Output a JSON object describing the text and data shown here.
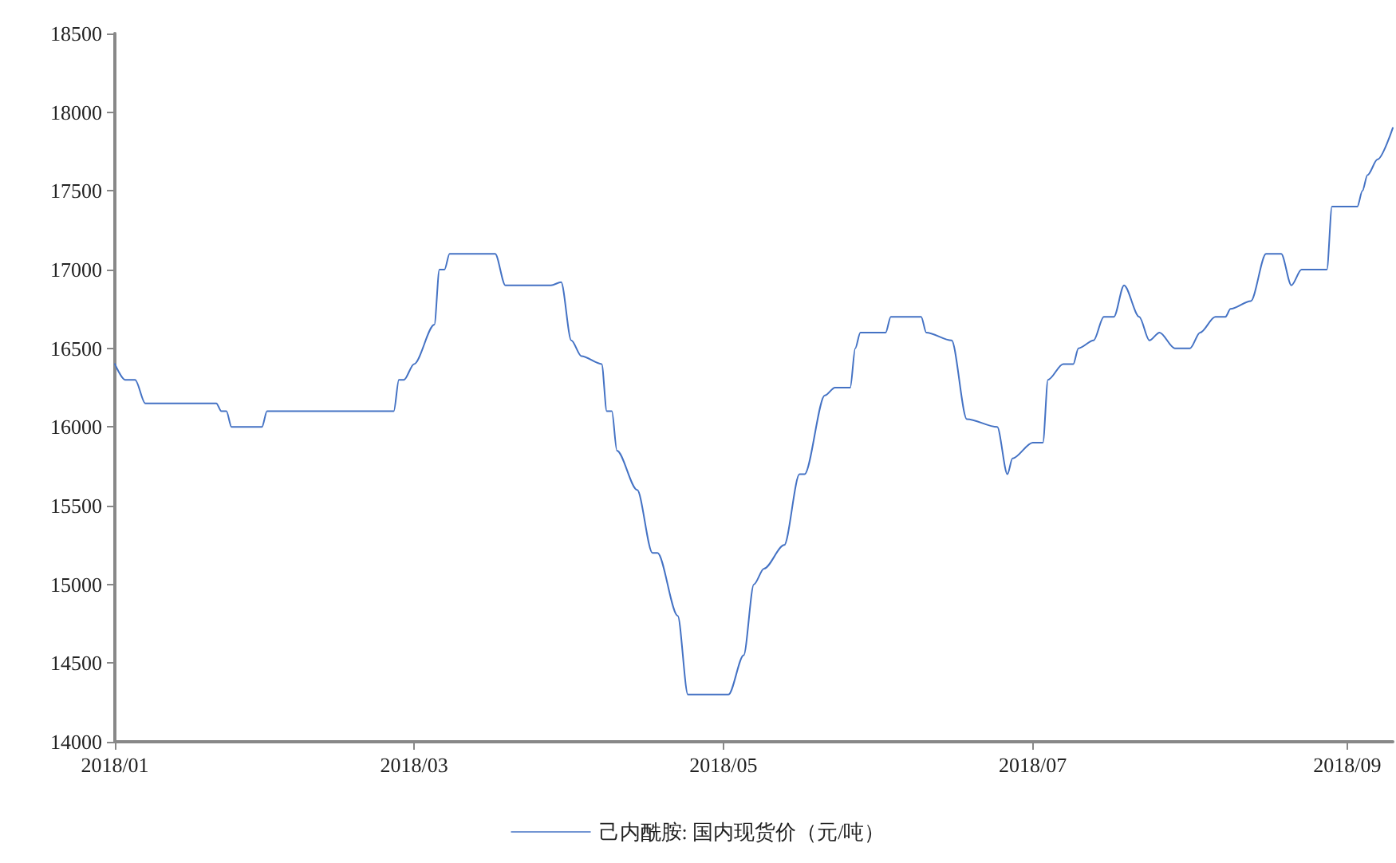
{
  "chart_data": {
    "type": "line",
    "xlim": [
      "2018-01-01",
      "2018-09-10"
    ],
    "ylim": [
      14000,
      18500
    ],
    "xticks": [
      {
        "value": "2018-01-01",
        "label": "2018/01"
      },
      {
        "value": "2018-03-01",
        "label": "2018/03"
      },
      {
        "value": "2018-05-01",
        "label": "2018/05"
      },
      {
        "value": "2018-07-01",
        "label": "2018/07"
      },
      {
        "value": "2018-09-01",
        "label": "2018/09"
      }
    ],
    "yticks": [
      14000,
      14500,
      15000,
      15500,
      16000,
      16500,
      17000,
      17500,
      18000,
      18500
    ],
    "grid": false,
    "legend": "bottom",
    "marker": "none",
    "line_style": "solid",
    "x": [
      "2018-01-01",
      "2018-01-03",
      "2018-01-05",
      "2018-01-07",
      "2018-01-21",
      "2018-01-22",
      "2018-01-23",
      "2018-01-24",
      "2018-01-30",
      "2018-01-31",
      "2018-02-25",
      "2018-02-26",
      "2018-02-27",
      "2018-03-01",
      "2018-03-05",
      "2018-03-06",
      "2018-03-07",
      "2018-03-08",
      "2018-03-17",
      "2018-03-19",
      "2018-03-28",
      "2018-03-30",
      "2018-04-01",
      "2018-04-03",
      "2018-04-07",
      "2018-04-08",
      "2018-04-09",
      "2018-04-10",
      "2018-04-14",
      "2018-04-17",
      "2018-04-18",
      "2018-04-22",
      "2018-04-24",
      "2018-05-02",
      "2018-05-05",
      "2018-05-07",
      "2018-05-09",
      "2018-05-13",
      "2018-05-16",
      "2018-05-17",
      "2018-05-21",
      "2018-05-23",
      "2018-05-26",
      "2018-05-27",
      "2018-05-28",
      "2018-06-02",
      "2018-06-03",
      "2018-06-09",
      "2018-06-10",
      "2018-06-15",
      "2018-06-18",
      "2018-06-24",
      "2018-06-26",
      "2018-06-27",
      "2018-07-01",
      "2018-07-03",
      "2018-07-04",
      "2018-07-07",
      "2018-07-09",
      "2018-07-10",
      "2018-07-13",
      "2018-07-15",
      "2018-07-17",
      "2018-07-19",
      "2018-07-22",
      "2018-07-24",
      "2018-07-26",
      "2018-07-29",
      "2018-08-01",
      "2018-08-03",
      "2018-08-06",
      "2018-08-08",
      "2018-08-09",
      "2018-08-13",
      "2018-08-16",
      "2018-08-19",
      "2018-08-21",
      "2018-08-23",
      "2018-08-28",
      "2018-08-29",
      "2018-09-03",
      "2018-09-04",
      "2018-09-05",
      "2018-09-07",
      "2018-09-10"
    ],
    "series": [
      {
        "name": "己内酰胺: 国内现货价（元/吨）",
        "color": "#4472c4",
        "values": [
          16400,
          16300,
          16300,
          16150,
          16150,
          16100,
          16100,
          16000,
          16000,
          16100,
          16100,
          16300,
          16300,
          16400,
          16650,
          17000,
          17000,
          17100,
          17100,
          16900,
          16900,
          16920,
          16550,
          16450,
          16400,
          16100,
          16100,
          15850,
          15600,
          15200,
          15200,
          14800,
          14300,
          14300,
          14550,
          15000,
          15100,
          15250,
          15700,
          15700,
          16200,
          16250,
          16250,
          16500,
          16600,
          16600,
          16700,
          16700,
          16600,
          16550,
          16050,
          16000,
          15700,
          15800,
          15900,
          15900,
          16300,
          16400,
          16400,
          16500,
          16550,
          16700,
          16700,
          16900,
          16700,
          16550,
          16600,
          16500,
          16500,
          16600,
          16700,
          16700,
          16750,
          16800,
          17100,
          17100,
          16900,
          17000,
          17000,
          17400,
          17400,
          17500,
          17600,
          17700,
          17900
        ]
      }
    ]
  }
}
